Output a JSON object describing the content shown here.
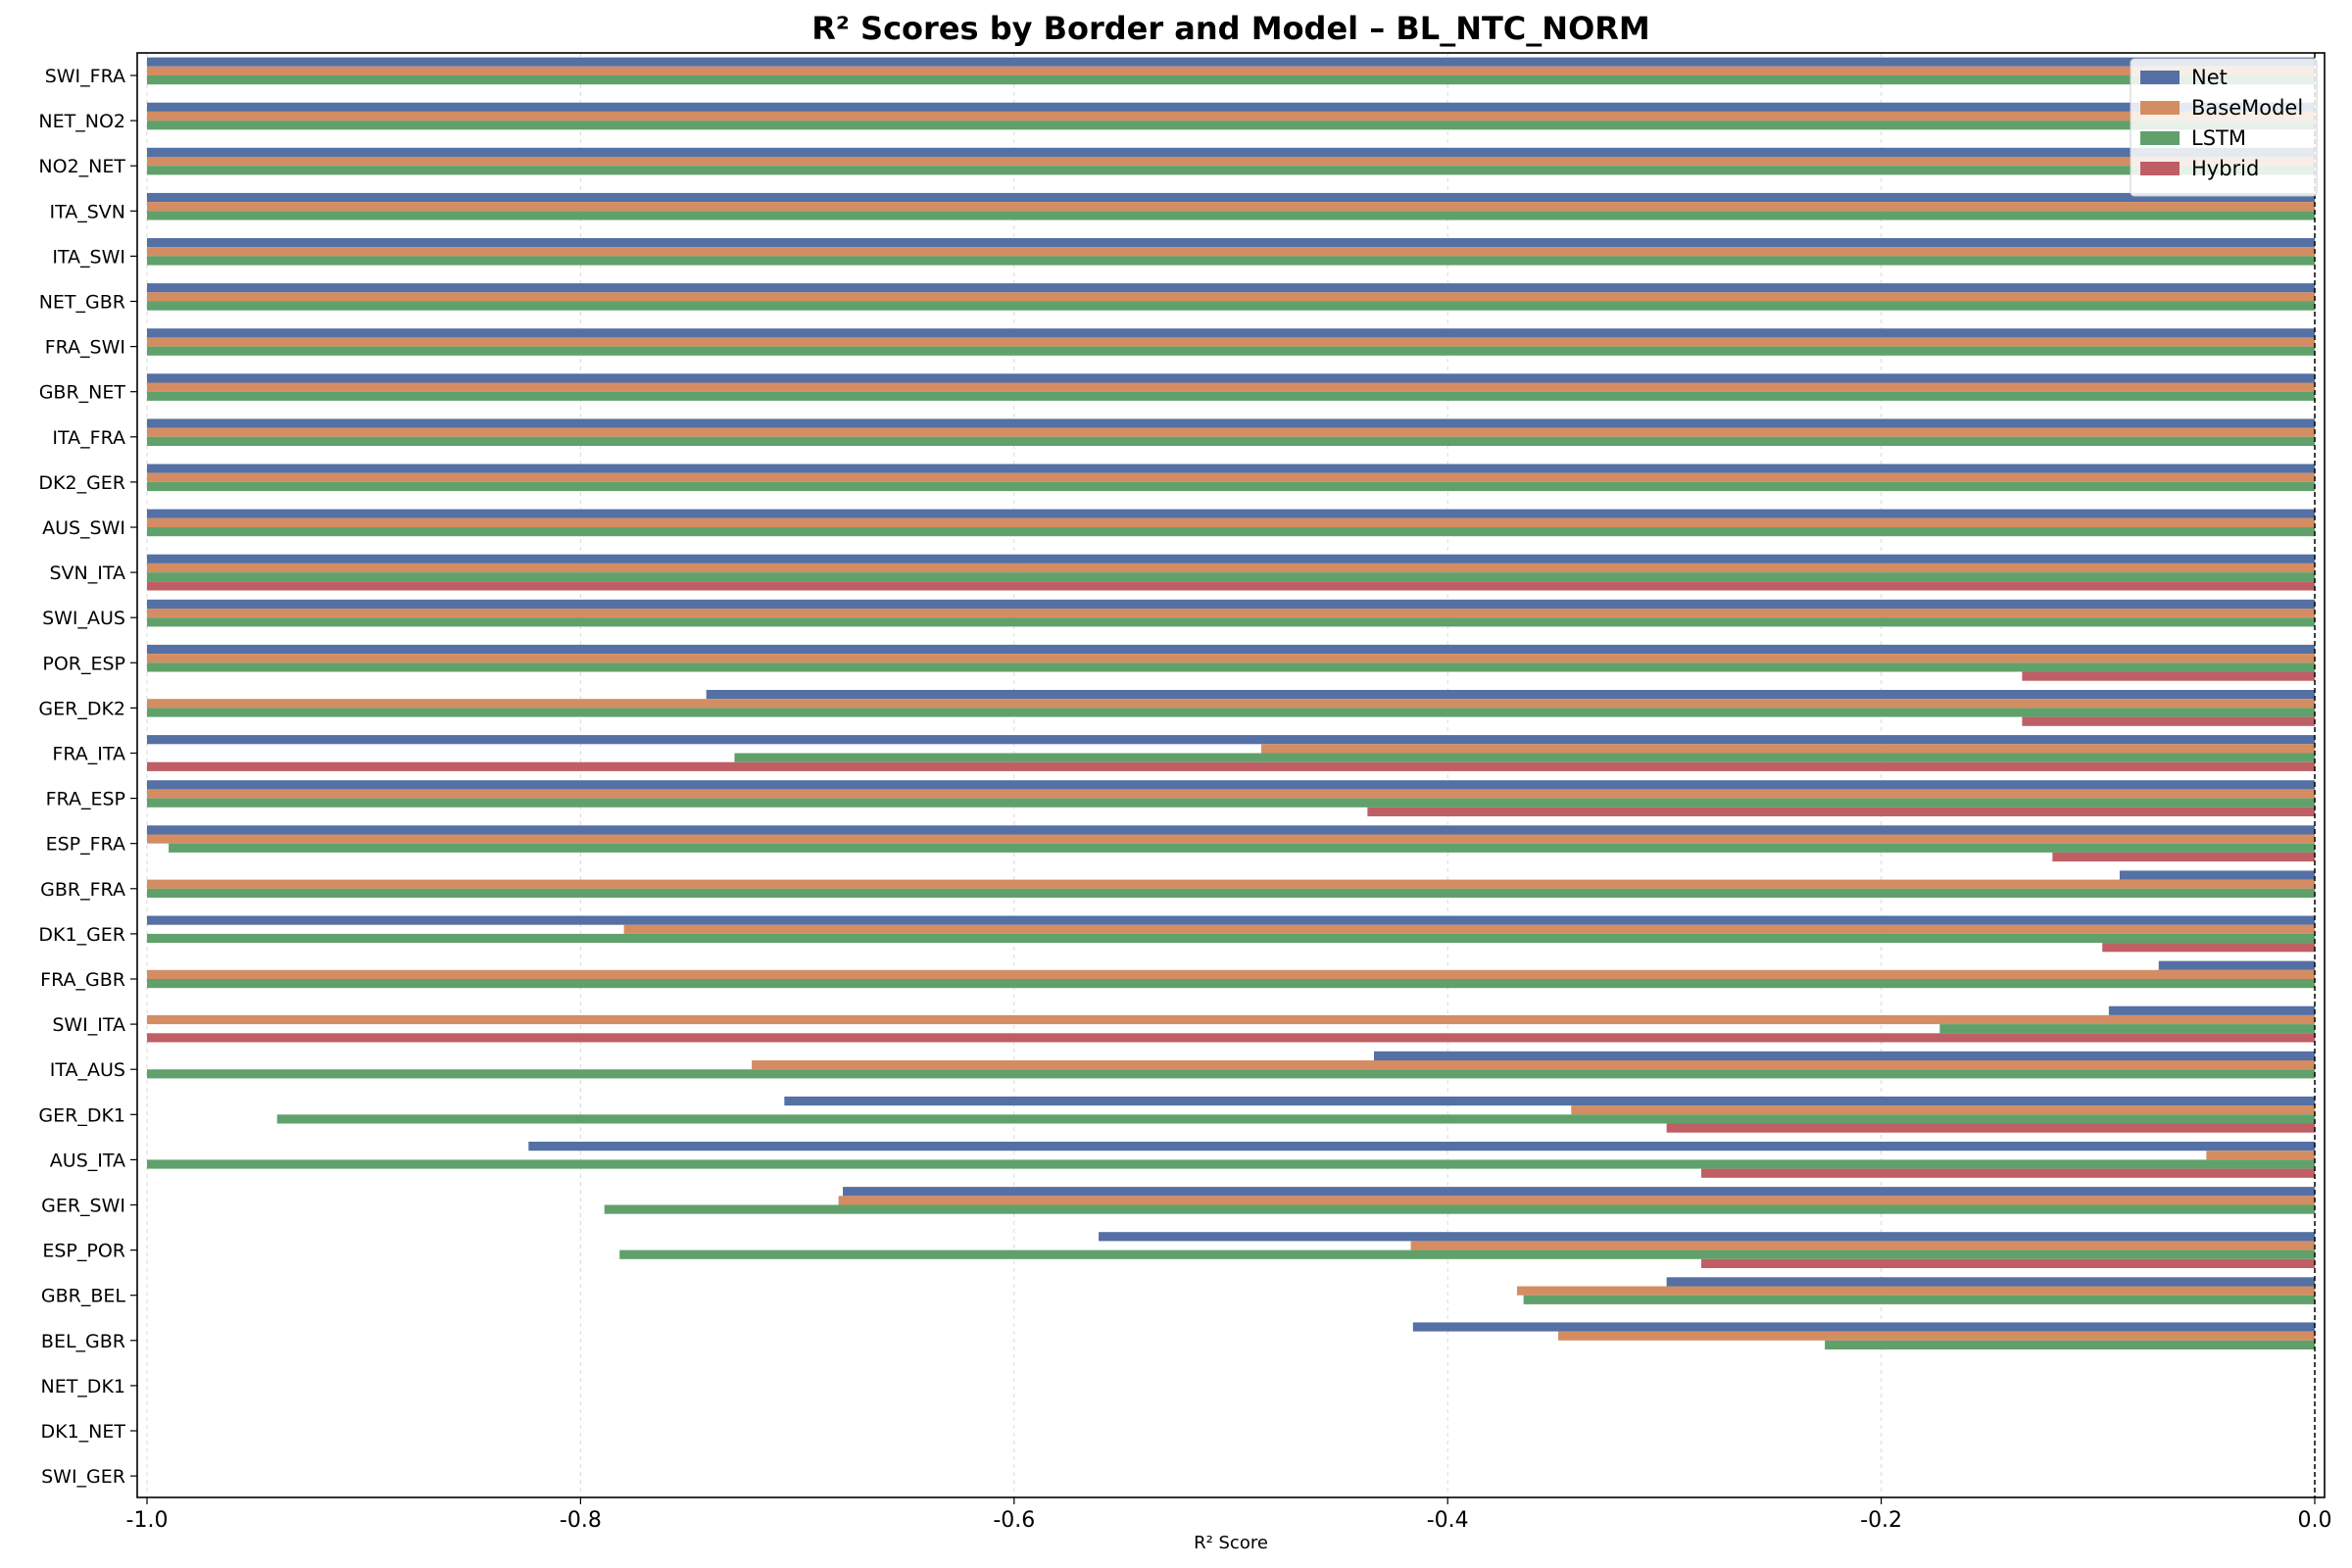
{
  "chart_data": {
    "type": "bar",
    "orientation": "horizontal",
    "title": "R² Scores by Border and Model – BL_NTC_NORM",
    "xlabel": "R² Score",
    "ylabel": "",
    "xlim": [
      -1.0,
      0.0
    ],
    "xticks": [
      "-1.0",
      "-0.8",
      "-0.6",
      "-0.4",
      "-0.2",
      "0.0"
    ],
    "xtick_values": [
      -1.0,
      -0.8,
      -0.6,
      -0.4,
      -0.2,
      0.0
    ],
    "grid": "vertical-dashed",
    "legend_position": "top-right",
    "reference_line": 0.0,
    "categories": [
      "SWI_FRA",
      "NET_NO2",
      "NO2_NET",
      "ITA_SVN",
      "ITA_SWI",
      "NET_GBR",
      "FRA_SWI",
      "GBR_NET",
      "ITA_FRA",
      "DK2_GER",
      "AUS_SWI",
      "SVN_ITA",
      "SWI_AUS",
      "POR_ESP",
      "GER_DK2",
      "FRA_ITA",
      "FRA_ESP",
      "ESP_FRA",
      "GBR_FRA",
      "DK1_GER",
      "FRA_GBR",
      "SWI_ITA",
      "ITA_AUS",
      "GER_DK1",
      "AUS_ITA",
      "GER_SWI",
      "ESP_POR",
      "GBR_BEL",
      "BEL_GBR",
      "NET_DK1",
      "DK1_NET",
      "SWI_GER"
    ],
    "series": [
      {
        "name": "Net",
        "color": "#5470a4",
        "values": [
          -1.0,
          -1.0,
          -1.0,
          -1.0,
          -1.0,
          -1.0,
          -1.0,
          -1.0,
          -1.0,
          -1.0,
          -1.0,
          -1.0,
          -1.0,
          -1.0,
          -0.742,
          -1.0,
          -1.0,
          -1.0,
          -0.09,
          -1.0,
          -0.072,
          -0.095,
          -0.434,
          -0.706,
          -0.824,
          -0.679,
          -0.561,
          -0.299,
          -0.416,
          null,
          null,
          null
        ]
      },
      {
        "name": "BaseModel",
        "color": "#d48d62",
        "values": [
          -1.0,
          -1.0,
          -1.0,
          -1.0,
          -1.0,
          -1.0,
          -1.0,
          -1.0,
          -1.0,
          -1.0,
          -1.0,
          -1.0,
          -1.0,
          -1.0,
          -1.0,
          -0.486,
          -1.0,
          -1.0,
          -1.0,
          -0.78,
          -1.0,
          -1.0,
          -0.721,
          -0.343,
          -0.05,
          -0.681,
          -0.417,
          -0.368,
          -0.349,
          null,
          null,
          null
        ]
      },
      {
        "name": "LSTM",
        "color": "#60a16b",
        "values": [
          -1.0,
          -1.0,
          -1.0,
          -1.0,
          -1.0,
          -1.0,
          -1.0,
          -1.0,
          -1.0,
          -1.0,
          -1.0,
          -1.0,
          -1.0,
          -1.0,
          -1.0,
          -0.729,
          -1.0,
          -0.99,
          -1.0,
          -1.0,
          -1.0,
          -0.173,
          -1.0,
          -0.94,
          -1.0,
          -0.789,
          -0.782,
          -0.365,
          -0.226,
          null,
          null,
          null
        ]
      },
      {
        "name": "Hybrid",
        "color": "#bf5f65",
        "values": [
          null,
          null,
          null,
          null,
          null,
          null,
          null,
          null,
          null,
          null,
          null,
          -1.0,
          null,
          -0.135,
          -0.135,
          -1.0,
          -0.437,
          -0.121,
          null,
          -0.098,
          null,
          -1.0,
          null,
          -0.299,
          -0.283,
          null,
          -0.283,
          null,
          null,
          null,
          null,
          null
        ]
      }
    ]
  }
}
